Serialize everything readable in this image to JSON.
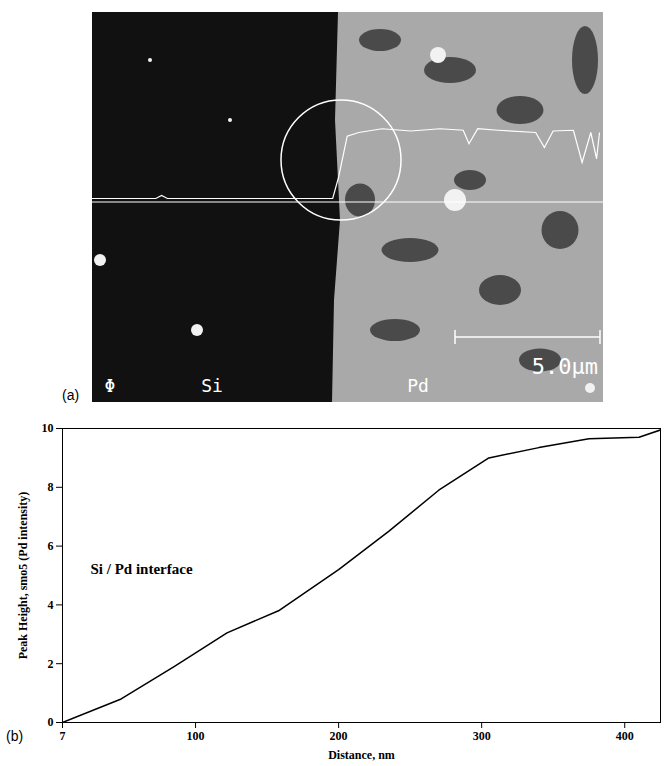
{
  "panel_a": {
    "label": "(a)",
    "texts": [
      "Φ",
      "Si",
      "Pd"
    ],
    "scale_bar": "5.0μm",
    "line_profile": {
      "x": [
        0,
        2.2,
        2.4,
        2.6,
        8.3,
        8.5,
        8.8,
        9.2,
        10,
        11,
        12,
        12.8,
        13,
        13.3,
        14,
        15.3,
        15.6,
        15.9,
        16.6,
        16.9,
        17.2,
        17.4,
        17.5
      ],
      "values": [
        0.02,
        0.02,
        0.06,
        0.02,
        0.02,
        0.3,
        0.85,
        0.9,
        0.95,
        0.92,
        0.95,
        0.93,
        0.75,
        0.95,
        0.93,
        0.9,
        0.7,
        0.92,
        0.93,
        0.5,
        0.9,
        0.55,
        0.9
      ]
    }
  },
  "chart_data": {
    "type": "line",
    "label": "(b)",
    "annotation": "Si / Pd interface",
    "x_label": "Distance, nm",
    "y_label": "Peak Height, smo5 (Pd intensity)",
    "x": [
      7,
      48,
      85,
      122,
      158,
      200,
      235,
      270,
      305,
      340,
      375,
      410,
      425
    ],
    "values": [
      0,
      0.8,
      1.9,
      3.05,
      3.8,
      5.2,
      6.5,
      7.9,
      9.0,
      9.35,
      9.65,
      9.7,
      9.95
    ],
    "color": "#000000",
    "xlim": [
      7,
      425
    ],
    "xticks": [
      7,
      100,
      200,
      300,
      400
    ],
    "ylim": [
      0,
      10
    ],
    "yticks": [
      0,
      2,
      4,
      6,
      8,
      10
    ],
    "grid": false
  }
}
